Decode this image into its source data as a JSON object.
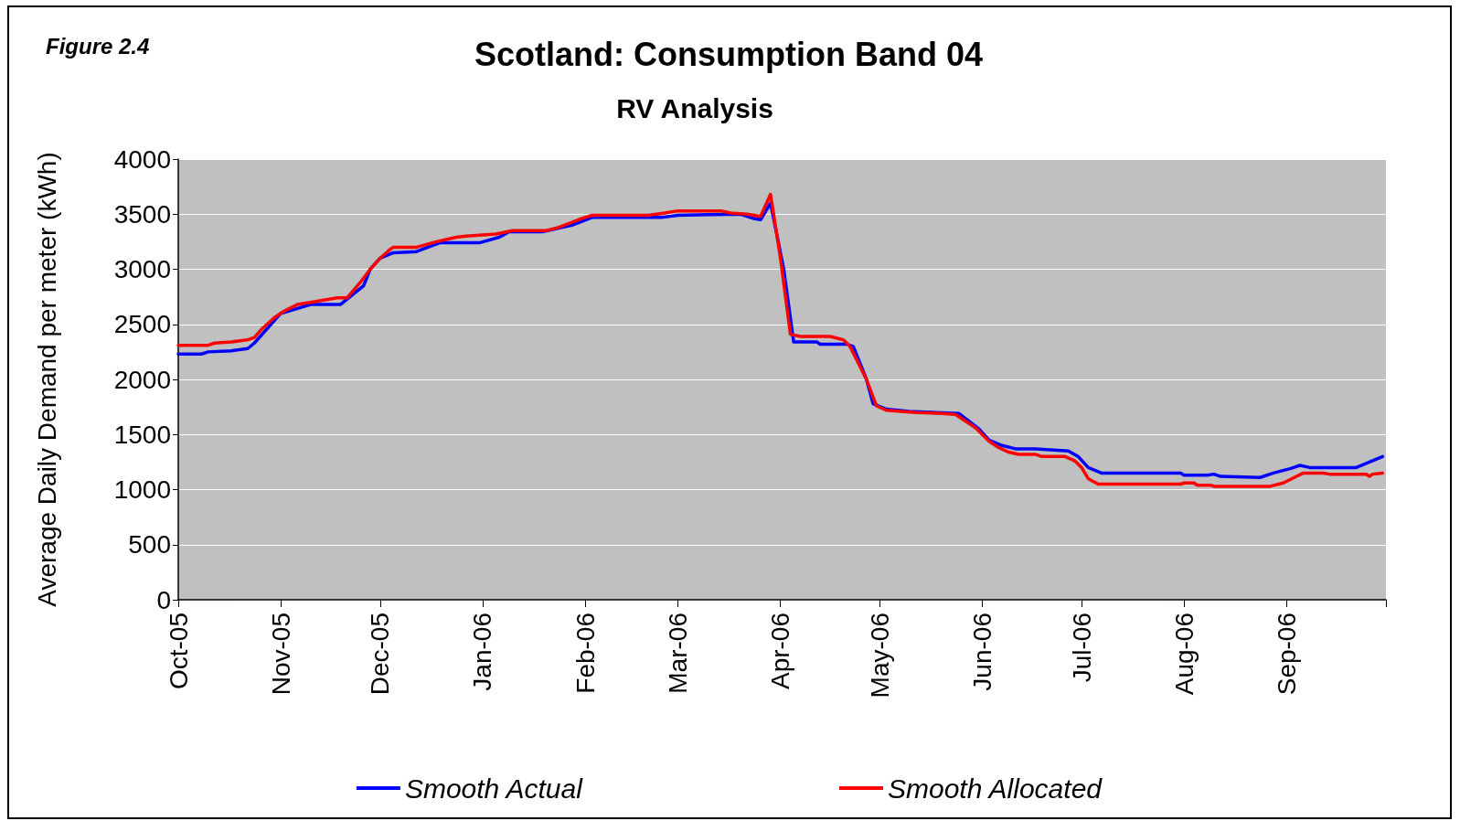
{
  "chart_data": {
    "type": "line",
    "title": "Scotland: Consumption Band 04",
    "subtitle": "RV Analysis",
    "ylabel": "Average Daily Demand per meter (kWh)",
    "annotations": [
      "Figure 2.4"
    ],
    "xlim": [
      "2005-10-01",
      "2006-10-01"
    ],
    "xticks": [
      {
        "value": "2005-10-01",
        "label": "Oct-05"
      },
      {
        "value": "2005-11-01",
        "label": "Nov-05"
      },
      {
        "value": "2005-12-01",
        "label": "Dec-05"
      },
      {
        "value": "2006-01-01",
        "label": "Jan-06"
      },
      {
        "value": "2006-02-01",
        "label": "Feb-06"
      },
      {
        "value": "2006-03-01",
        "label": "Mar-06"
      },
      {
        "value": "2006-04-01",
        "label": "Apr-06"
      },
      {
        "value": "2006-05-01",
        "label": "May-06"
      },
      {
        "value": "2006-06-01",
        "label": "Jun-06"
      },
      {
        "value": "2006-07-01",
        "label": "Jul-06"
      },
      {
        "value": "2006-08-01",
        "label": "Aug-06"
      },
      {
        "value": "2006-09-01",
        "label": "Sep-06"
      },
      {
        "value": "2006-10-01",
        "label": null
      }
    ],
    "ylim": [
      0,
      4000
    ],
    "yticks": [
      0,
      500,
      1000,
      1500,
      2000,
      2500,
      3000,
      3500,
      4000
    ],
    "grid": "y",
    "legend": "bottom",
    "marker": "none",
    "line_style": "solid",
    "series": [
      {
        "name": "Smooth Actual",
        "color": "#0000ff",
        "x": [
          "2005-10-01",
          "2005-10-08",
          "2005-10-10",
          "2005-10-17",
          "2005-10-22",
          "2005-10-24",
          "2005-11-01",
          "2005-11-10",
          "2005-11-19",
          "2005-11-26",
          "2005-11-28",
          "2005-12-01",
          "2005-12-05",
          "2005-12-12",
          "2005-12-19",
          "2005-12-31",
          "2006-01-06",
          "2006-01-09",
          "2006-01-19",
          "2006-01-28",
          "2006-02-03",
          "2006-02-24",
          "2006-03-01",
          "2006-03-20",
          "2006-03-24",
          "2006-03-26",
          "2006-03-29",
          "2006-04-02",
          "2006-04-05",
          "2006-04-12",
          "2006-04-13",
          "2006-04-21",
          "2006-04-23",
          "2006-04-27",
          "2006-04-29",
          "2006-05-03",
          "2006-05-10",
          "2006-05-18",
          "2006-05-25",
          "2006-05-31",
          "2006-06-03",
          "2006-06-07",
          "2006-06-11",
          "2006-06-17",
          "2006-06-27",
          "2006-06-30",
          "2006-07-03",
          "2006-07-07",
          "2006-07-31",
          "2006-08-01",
          "2006-08-08",
          "2006-08-10",
          "2006-08-12",
          "2006-08-24",
          "2006-08-28",
          "2006-09-02",
          "2006-09-05",
          "2006-09-08",
          "2006-09-22",
          "2006-09-30"
        ],
        "values": [
          2230,
          2230,
          2250,
          2260,
          2280,
          2330,
          2600,
          2680,
          2680,
          2850,
          3000,
          3100,
          3150,
          3160,
          3240,
          3240,
          3290,
          3340,
          3340,
          3400,
          3470,
          3470,
          3490,
          3500,
          3460,
          3450,
          3600,
          3000,
          2340,
          2340,
          2320,
          2320,
          2300,
          2000,
          1780,
          1730,
          1710,
          1700,
          1690,
          1550,
          1450,
          1400,
          1370,
          1370,
          1350,
          1300,
          1200,
          1150,
          1150,
          1130,
          1130,
          1140,
          1120,
          1110,
          1150,
          1190,
          1220,
          1200,
          1200,
          1300
        ]
      },
      {
        "name": "Smooth Allocated",
        "color": "#ff0000",
        "x": [
          "2005-10-01",
          "2005-10-10",
          "2005-10-12",
          "2005-10-17",
          "2005-10-22",
          "2005-10-24",
          "2005-10-26",
          "2005-10-30",
          "2005-11-02",
          "2005-11-06",
          "2005-11-10",
          "2005-11-14",
          "2005-11-18",
          "2005-11-21",
          "2005-11-25",
          "2005-11-28",
          "2005-12-01",
          "2005-12-04",
          "2005-12-05",
          "2005-12-12",
          "2005-12-18",
          "2005-12-24",
          "2005-12-27",
          "2006-01-05",
          "2006-01-10",
          "2006-01-20",
          "2006-01-24",
          "2006-01-30",
          "2006-02-03",
          "2006-02-20",
          "2006-02-25",
          "2006-03-01",
          "2006-03-14",
          "2006-03-17",
          "2006-03-22",
          "2006-03-26",
          "2006-03-29",
          "2006-04-01",
          "2006-04-04",
          "2006-04-07",
          "2006-04-16",
          "2006-04-20",
          "2006-04-22",
          "2006-04-27",
          "2006-04-30",
          "2006-05-03",
          "2006-05-12",
          "2006-05-20",
          "2006-05-24",
          "2006-05-30",
          "2006-06-03",
          "2006-06-06",
          "2006-06-09",
          "2006-06-12",
          "2006-06-17",
          "2006-06-19",
          "2006-06-26",
          "2006-06-29",
          "2006-07-01",
          "2006-07-03",
          "2006-07-06",
          "2006-07-31",
          "2006-08-01",
          "2006-08-04",
          "2006-08-05",
          "2006-08-09",
          "2006-08-10",
          "2006-08-27",
          "2006-08-31",
          "2006-09-04",
          "2006-09-06",
          "2006-09-12",
          "2006-09-14",
          "2006-09-25",
          "2006-09-26",
          "2006-09-27",
          "2006-09-30"
        ],
        "values": [
          2310,
          2310,
          2330,
          2340,
          2360,
          2380,
          2450,
          2560,
          2620,
          2680,
          2700,
          2720,
          2740,
          2740,
          2880,
          3000,
          3100,
          3180,
          3200,
          3200,
          3250,
          3290,
          3300,
          3320,
          3350,
          3350,
          3380,
          3450,
          3490,
          3490,
          3510,
          3530,
          3530,
          3510,
          3500,
          3480,
          3680,
          3100,
          2410,
          2390,
          2390,
          2360,
          2300,
          2000,
          1760,
          1720,
          1700,
          1690,
          1680,
          1560,
          1440,
          1380,
          1340,
          1320,
          1320,
          1300,
          1300,
          1260,
          1200,
          1100,
          1050,
          1050,
          1060,
          1060,
          1040,
          1040,
          1030,
          1030,
          1060,
          1120,
          1150,
          1150,
          1140,
          1140,
          1120,
          1140,
          1150
        ]
      }
    ]
  }
}
